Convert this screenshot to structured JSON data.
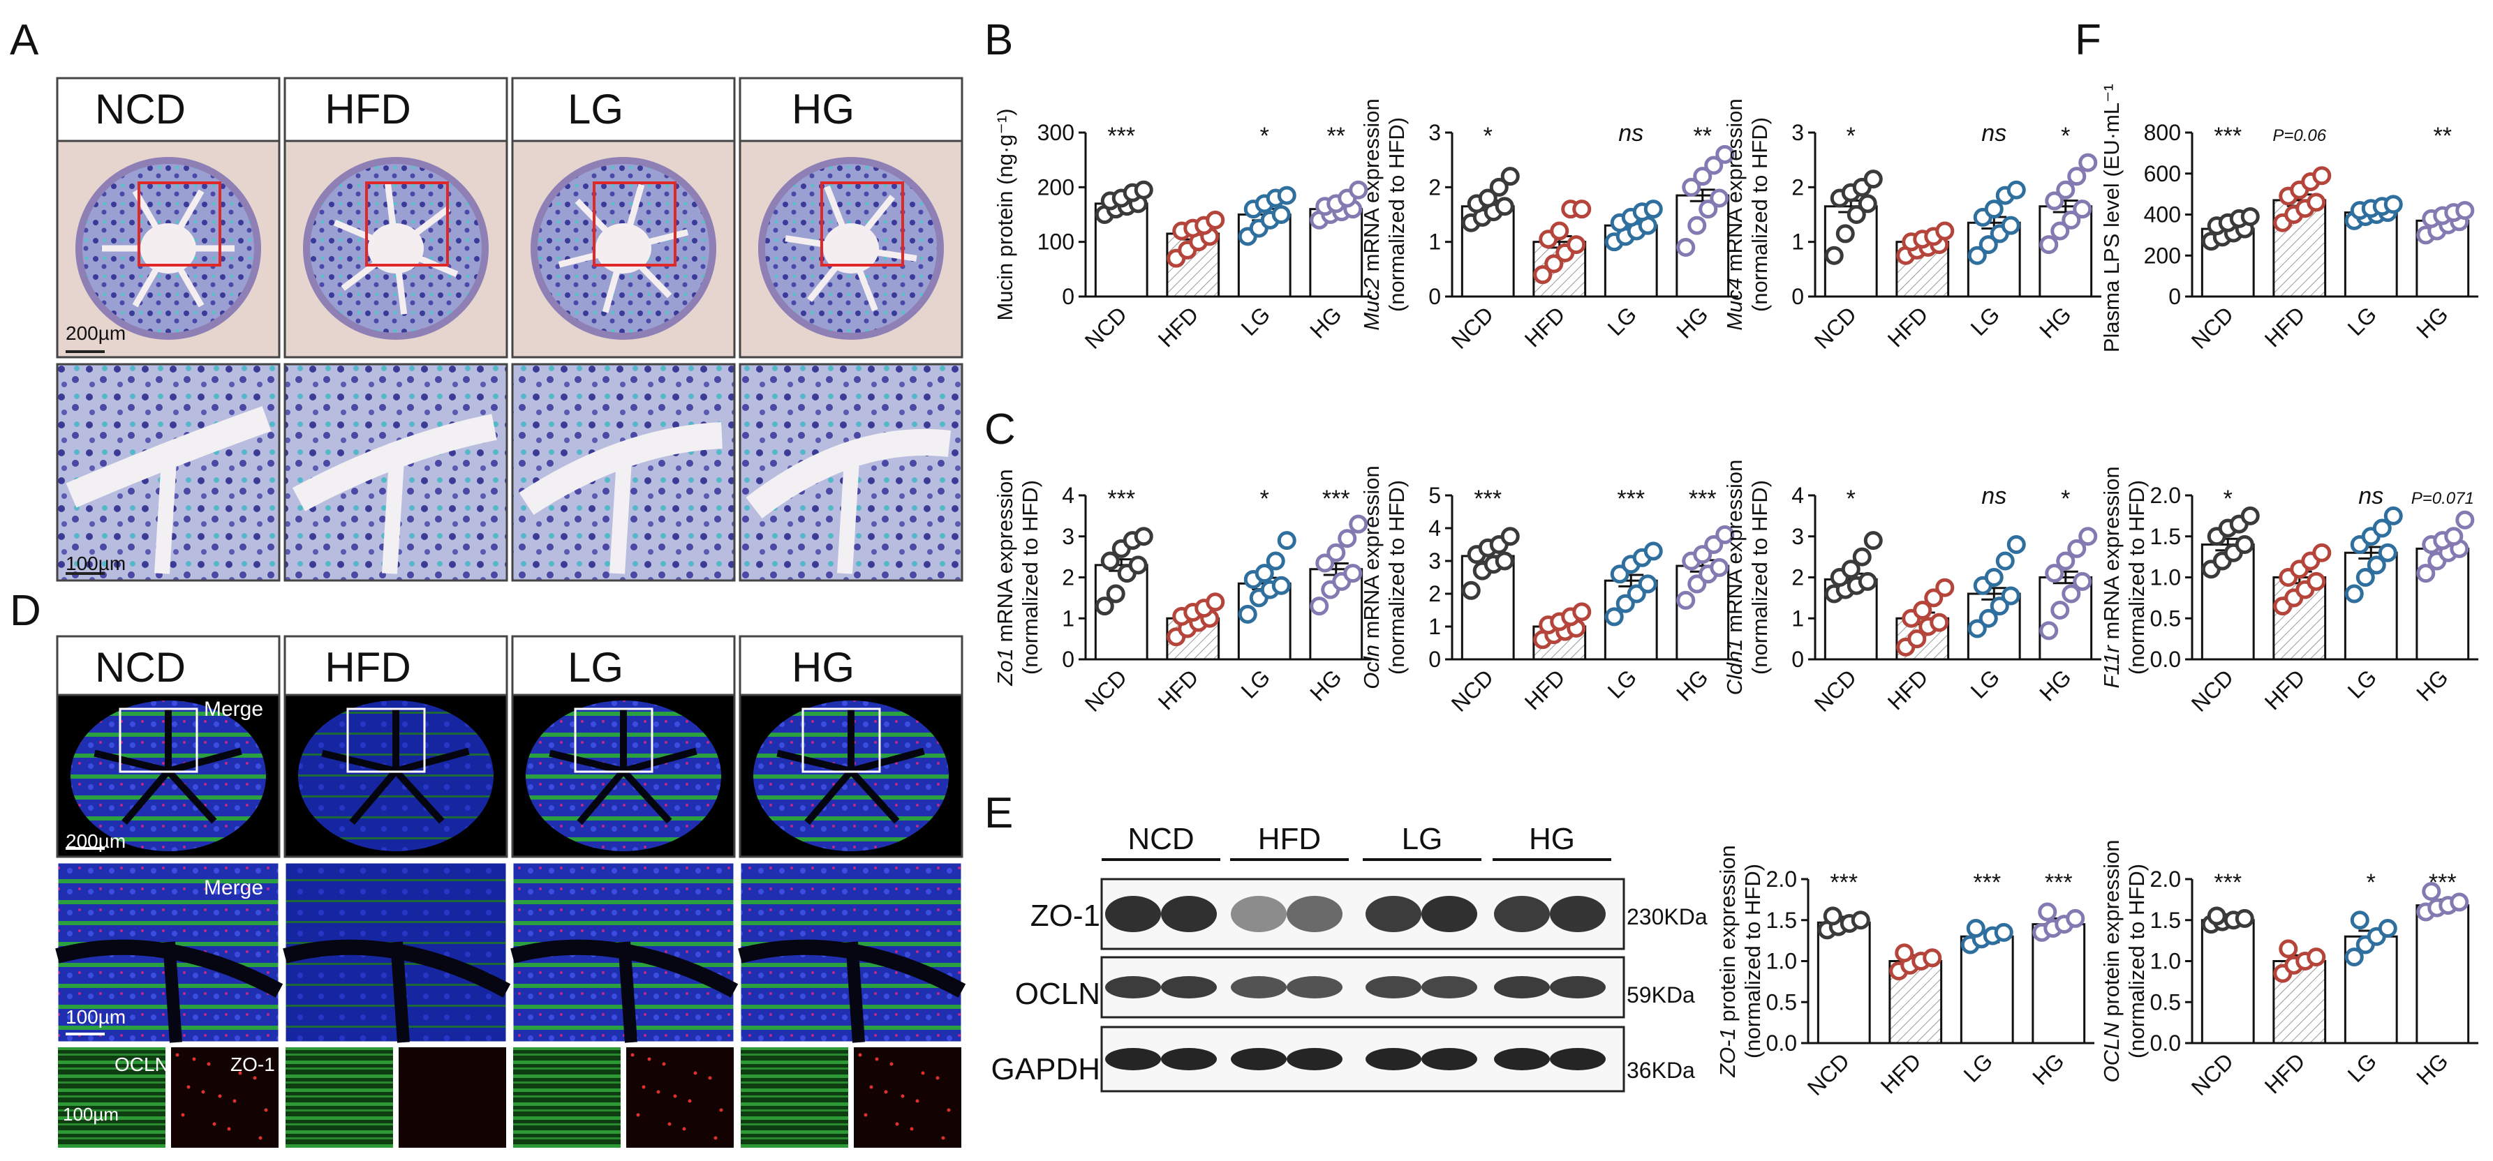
{
  "panel_letters": [
    "A",
    "B",
    "C",
    "D",
    "E",
    "F"
  ],
  "groups": [
    "NCD",
    "HFD",
    "LG",
    "HG"
  ],
  "colors": {
    "NCD": "#3a3a3a",
    "HFD": "#b5443a",
    "LG": "#2f6f9e",
    "HG": "#8479b0"
  },
  "panel_a": {
    "labels": [
      "NCD",
      "HFD",
      "LG",
      "HG"
    ],
    "scale_top": "200µm",
    "scale_bottom": "100µm"
  },
  "panel_d": {
    "labels": [
      "NCD",
      "HFD",
      "LG",
      "HG"
    ],
    "merge": "Merge",
    "scale_top": "200µm",
    "scale_mid": "100µm",
    "scale_bottom": "100µm",
    "ocln": "OCLN",
    "zo1": "ZO-1"
  },
  "panel_e_blot": {
    "groups": [
      "NCD",
      "HFD",
      "LG",
      "HG"
    ],
    "rows": [
      {
        "label": "ZO-1",
        "size": "230KDa"
      },
      {
        "label": "OCLN",
        "size": "59KDa"
      },
      {
        "label": "GAPDH",
        "size": "36KDa"
      }
    ]
  },
  "chart_data": [
    {
      "id": "mucin",
      "type": "bar",
      "ylabel": "Mucin protein (ng·g⁻¹)",
      "ylim": [
        0,
        300
      ],
      "yticks": [
        "0",
        "100",
        "200",
        "300"
      ],
      "categories": [
        "NCD",
        "HFD",
        "LG",
        "HG"
      ],
      "values": [
        170,
        115,
        150,
        160
      ],
      "sig": [
        "***",
        "",
        "*",
        "**"
      ],
      "points": [
        [
          150,
          160,
          165,
          170,
          175,
          180,
          190,
          195
        ],
        [
          70,
          85,
          100,
          110,
          120,
          125,
          130,
          140
        ],
        [
          110,
          125,
          140,
          150,
          160,
          170,
          180,
          185
        ],
        [
          140,
          150,
          155,
          160,
          165,
          170,
          180,
          195
        ]
      ]
    },
    {
      "id": "muc2",
      "type": "bar",
      "ylabel": "Muc2 mRNA expression (normalized to HFD)",
      "ylim": [
        0,
        3
      ],
      "yticks": [
        "0",
        "1",
        "2",
        "3"
      ],
      "categories": [
        "NCD",
        "HFD",
        "LG",
        "HG"
      ],
      "values": [
        1.65,
        1.0,
        1.3,
        1.85
      ],
      "sig": [
        "*",
        "",
        "ns",
        "**"
      ],
      "points": [
        [
          1.35,
          1.45,
          1.55,
          1.65,
          1.7,
          1.8,
          2.0,
          2.2
        ],
        [
          0.4,
          0.6,
          0.8,
          0.95,
          1.05,
          1.2,
          1.6,
          1.6
        ],
        [
          1.0,
          1.1,
          1.2,
          1.3,
          1.35,
          1.45,
          1.55,
          1.6
        ],
        [
          0.9,
          1.3,
          1.6,
          1.8,
          2.0,
          2.2,
          2.4,
          2.6
        ]
      ]
    },
    {
      "id": "muc4",
      "type": "bar",
      "ylabel": "Muc4 mRNA expression (normalized to HFD)",
      "ylim": [
        0,
        3
      ],
      "yticks": [
        "0",
        "1",
        "2",
        "3"
      ],
      "categories": [
        "NCD",
        "HFD",
        "LG",
        "HG"
      ],
      "values": [
        1.65,
        1.0,
        1.35,
        1.65
      ],
      "sig": [
        "*",
        "",
        "ns",
        "*"
      ],
      "points": [
        [
          0.75,
          1.15,
          1.5,
          1.7,
          1.8,
          1.9,
          2.0,
          2.15
        ],
        [
          0.75,
          0.85,
          0.9,
          0.95,
          1.0,
          1.05,
          1.1,
          1.2
        ],
        [
          0.75,
          0.95,
          1.15,
          1.3,
          1.45,
          1.6,
          1.85,
          1.95
        ],
        [
          0.95,
          1.2,
          1.4,
          1.6,
          1.75,
          1.95,
          2.2,
          2.45
        ]
      ]
    },
    {
      "id": "lps",
      "type": "bar",
      "ylabel": "Plasma LPS level (EU·mL⁻¹)",
      "ylim": [
        0,
        800
      ],
      "yticks": [
        "0",
        "200",
        "400",
        "600",
        "800"
      ],
      "categories": [
        "NCD",
        "HFD",
        "LG",
        "HG"
      ],
      "values": [
        330,
        470,
        410,
        370
      ],
      "sig": [
        "***",
        "P=0.06",
        "",
        "**"
      ],
      "points": [
        [
          270,
          290,
          310,
          330,
          345,
          360,
          380,
          390
        ],
        [
          360,
          400,
          430,
          460,
          490,
          520,
          560,
          590
        ],
        [
          370,
          390,
          400,
          410,
          420,
          430,
          440,
          450
        ],
        [
          300,
          320,
          350,
          365,
          380,
          395,
          410,
          420
        ]
      ]
    },
    {
      "id": "zo1",
      "type": "bar",
      "ylabel": "Zo1 mRNA expression (normalized to HFD)",
      "ylim": [
        0,
        4
      ],
      "yticks": [
        "0",
        "1",
        "2",
        "3",
        "4"
      ],
      "categories": [
        "NCD",
        "HFD",
        "LG",
        "HG"
      ],
      "values": [
        2.3,
        1.0,
        1.85,
        2.2
      ],
      "sig": [
        "***",
        "",
        "*",
        "***"
      ],
      "points": [
        [
          1.3,
          1.6,
          2.1,
          2.3,
          2.4,
          2.7,
          2.9,
          3.0
        ],
        [
          0.55,
          0.75,
          0.9,
          1.0,
          1.05,
          1.15,
          1.25,
          1.4
        ],
        [
          1.1,
          1.5,
          1.7,
          1.8,
          1.95,
          2.1,
          2.4,
          2.9
        ],
        [
          1.3,
          1.7,
          1.9,
          2.1,
          2.35,
          2.6,
          2.95,
          3.3
        ]
      ]
    },
    {
      "id": "ocln",
      "type": "bar",
      "ylabel": "Ocln mRNA expression (normalized to HFD)",
      "ylim": [
        0,
        5
      ],
      "yticks": [
        "0",
        "1",
        "2",
        "3",
        "4",
        "5"
      ],
      "categories": [
        "NCD",
        "HFD",
        "LG",
        "HG"
      ],
      "values": [
        3.15,
        1.0,
        2.4,
        2.85
      ],
      "sig": [
        "***",
        "",
        "***",
        "***"
      ],
      "points": [
        [
          2.1,
          2.7,
          2.9,
          3.0,
          3.2,
          3.4,
          3.5,
          3.75
        ],
        [
          0.6,
          0.75,
          0.85,
          0.95,
          1.05,
          1.15,
          1.3,
          1.45
        ],
        [
          1.3,
          1.7,
          2.0,
          2.3,
          2.6,
          2.9,
          3.1,
          3.3
        ],
        [
          1.8,
          2.3,
          2.6,
          2.8,
          3.0,
          3.2,
          3.5,
          3.8
        ]
      ]
    },
    {
      "id": "cldn1",
      "type": "bar",
      "ylabel": "Cldn1 mRNA expression (normalized to HFD)",
      "ylim": [
        0,
        4
      ],
      "yticks": [
        "0",
        "1",
        "2",
        "3",
        "4"
      ],
      "categories": [
        "NCD",
        "HFD",
        "LG",
        "HG"
      ],
      "values": [
        1.95,
        1.0,
        1.6,
        2.0
      ],
      "sig": [
        "*",
        "",
        "ns",
        "*"
      ],
      "points": [
        [
          1.6,
          1.7,
          1.8,
          1.9,
          2.0,
          2.2,
          2.5,
          2.9
        ],
        [
          0.3,
          0.5,
          0.8,
          0.9,
          1.0,
          1.2,
          1.5,
          1.75
        ],
        [
          0.75,
          1.0,
          1.3,
          1.55,
          1.8,
          2.0,
          2.4,
          2.8
        ],
        [
          0.7,
          1.2,
          1.6,
          1.9,
          2.1,
          2.4,
          2.7,
          3.0
        ]
      ]
    },
    {
      "id": "f11r",
      "type": "bar",
      "ylabel": "F11r mRNA expression (normalized to HFD)",
      "ylim": [
        0,
        2
      ],
      "yticks": [
        "0.0",
        "0.5",
        "1.0",
        "1.5",
        "2.0"
      ],
      "categories": [
        "NCD",
        "HFD",
        "LG",
        "HG"
      ],
      "values": [
        1.4,
        1.0,
        1.3,
        1.35
      ],
      "sig": [
        "*",
        "",
        "ns",
        "P=0.071"
      ],
      "points": [
        [
          1.1,
          1.2,
          1.3,
          1.4,
          1.5,
          1.6,
          1.65,
          1.75
        ],
        [
          0.65,
          0.75,
          0.85,
          0.95,
          1.0,
          1.1,
          1.2,
          1.3
        ],
        [
          0.8,
          1.0,
          1.15,
          1.3,
          1.4,
          1.5,
          1.6,
          1.75
        ],
        [
          1.05,
          1.2,
          1.3,
          1.35,
          1.4,
          1.45,
          1.5,
          1.7
        ]
      ]
    },
    {
      "id": "zo1p",
      "type": "bar",
      "ylabel": "ZO-1 protein expression (normalized to HFD)",
      "ylim": [
        0,
        2
      ],
      "yticks": [
        "0.0",
        "0.5",
        "1.0",
        "1.5",
        "2.0"
      ],
      "categories": [
        "NCD",
        "HFD",
        "LG",
        "HG"
      ],
      "values": [
        1.47,
        1.0,
        1.3,
        1.45
      ],
      "sig": [
        "***",
        "",
        "***",
        "***"
      ],
      "points": [
        [
          1.38,
          1.42,
          1.46,
          1.5,
          1.55
        ],
        [
          0.88,
          0.95,
          1.0,
          1.04,
          1.1
        ],
        [
          1.2,
          1.27,
          1.31,
          1.35,
          1.4
        ],
        [
          1.35,
          1.4,
          1.45,
          1.52,
          1.6
        ]
      ]
    },
    {
      "id": "oclnp",
      "type": "bar",
      "ylabel": "OCLN protein expression (normalized to HFD)",
      "ylim": [
        0,
        2
      ],
      "yticks": [
        "0.0",
        "0.5",
        "1.0",
        "1.5",
        "2.0"
      ],
      "categories": [
        "NCD",
        "HFD",
        "LG",
        "HG"
      ],
      "values": [
        1.5,
        1.0,
        1.3,
        1.68
      ],
      "sig": [
        "***",
        "",
        "*",
        "***"
      ],
      "points": [
        [
          1.45,
          1.48,
          1.5,
          1.52,
          1.55
        ],
        [
          0.85,
          0.95,
          1.0,
          1.05,
          1.15
        ],
        [
          1.05,
          1.2,
          1.3,
          1.4,
          1.5
        ],
        [
          1.6,
          1.65,
          1.68,
          1.72,
          1.85
        ]
      ]
    }
  ]
}
